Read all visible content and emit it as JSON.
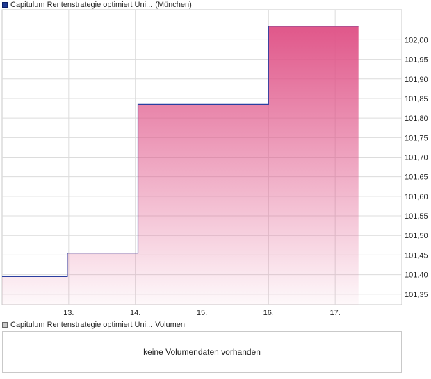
{
  "legend": {
    "price_name": "Capitulum Rentenstrategie optimiert Uni...",
    "price_market": "(München)",
    "volume_name": "Capitulum Rentenstrategie optimiert Uni...",
    "volume_label": "Volumen"
  },
  "volume_panel": {
    "message": "keine Volumendaten vorhanden"
  },
  "colors": {
    "line": "#2b3fa0",
    "fill_top": "#e0578a",
    "grid": "#dcdcdc",
    "frame": "#c9c9c9"
  },
  "chart_data": {
    "type": "area",
    "step": true,
    "x_start": 12.0,
    "x_end": 17.35,
    "points": [
      {
        "x": 12.0,
        "y": 101.395
      },
      {
        "x": 12.98,
        "y": 101.395
      },
      {
        "x": 12.98,
        "y": 101.455
      },
      {
        "x": 14.04,
        "y": 101.455
      },
      {
        "x": 14.04,
        "y": 101.835
      },
      {
        "x": 16.0,
        "y": 101.835
      },
      {
        "x": 16.0,
        "y": 102.035
      },
      {
        "x": 17.35,
        "y": 102.035
      }
    ],
    "x_ticks": [
      {
        "x": 13,
        "label": "13."
      },
      {
        "x": 14,
        "label": "14."
      },
      {
        "x": 15,
        "label": "15."
      },
      {
        "x": 16,
        "label": "16."
      },
      {
        "x": 17,
        "label": "17."
      }
    ],
    "y_ticks": [
      {
        "y": 101.35,
        "label": "101,35"
      },
      {
        "y": 101.4,
        "label": "101,40"
      },
      {
        "y": 101.45,
        "label": "101,45"
      },
      {
        "y": 101.5,
        "label": "101,50"
      },
      {
        "y": 101.55,
        "label": "101,55"
      },
      {
        "y": 101.6,
        "label": "101,60"
      },
      {
        "y": 101.65,
        "label": "101,65"
      },
      {
        "y": 101.7,
        "label": "101,70"
      },
      {
        "y": 101.75,
        "label": "101,75"
      },
      {
        "y": 101.8,
        "label": "101,80"
      },
      {
        "y": 101.85,
        "label": "101,85"
      },
      {
        "y": 101.9,
        "label": "101,90"
      },
      {
        "y": 101.95,
        "label": "101,95"
      },
      {
        "y": 102.0,
        "label": "102,00"
      }
    ],
    "xlim": [
      12.0,
      18.0
    ],
    "ylim": [
      101.323,
      102.077
    ],
    "grid": true,
    "title": "",
    "xlabel": "",
    "ylabel": ""
  }
}
